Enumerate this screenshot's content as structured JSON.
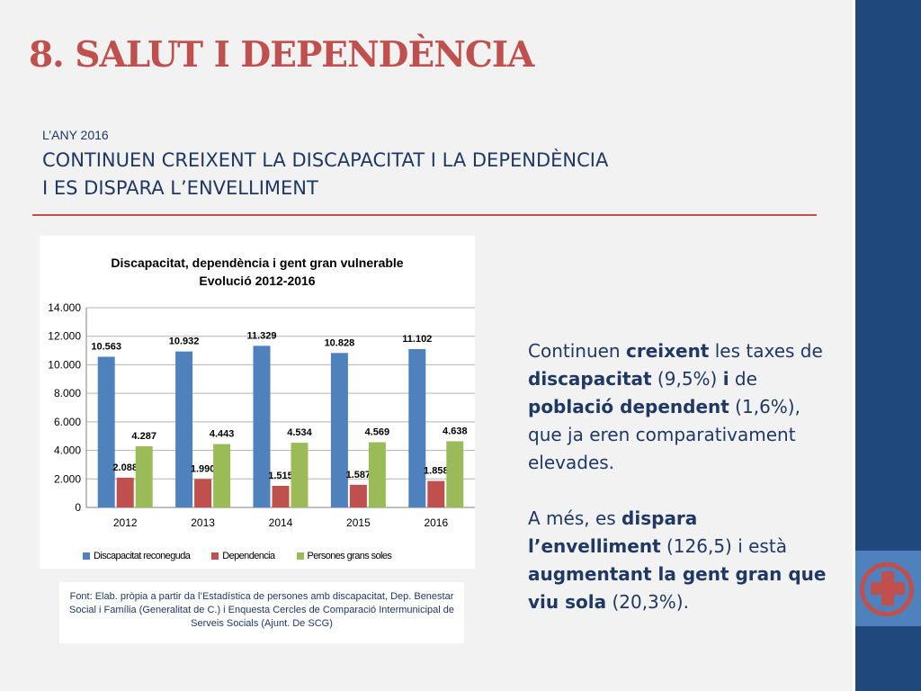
{
  "title": "8. SALUT I DEPENDÈNCIA",
  "kicker": "L’ANY 2016",
  "headline_line1": "CONTINUEN CREIXENT LA DISCAPACITAT I LA DEPENDÈNCIA",
  "headline_line2": "I ES DISPARA L’ENVELLIMENT",
  "chart_title_line1": "Discapacitat, dependència i gent gran vulnerable",
  "chart_title_line2": "Evolució 2012-2016",
  "source": "Font: Elab. pròpia a partir da l’Estadística de persones amb discapacitat, Dep. Benestar Social i Família (Generalitat de C.) i Enquesta Cercles de Comparació Intermunicipal de Serveis Socials (Ajunt. De SCG)",
  "paragraph1": {
    "t1": "Continuen ",
    "b1": "creixent",
    "t2": " les taxes de ",
    "b2": "discapacitat",
    "t3": " (9,5%) ",
    "b3": "i",
    "t4": " de ",
    "b4": "població dependent",
    "t5": " (1,6%), que ja eren comparativament elevades."
  },
  "paragraph2": {
    "t1": "A més, es ",
    "b1": "dispara l’envelliment",
    "t2": " (126,5) i està ",
    "b2": "augmentant la gent gran que viu sola",
    "t3": " (20,3%)."
  },
  "colors": {
    "accent": "#c0504d",
    "text": "#1f3864",
    "sidebar": "#1f497d",
    "sidebar_tab": "#4f81bd"
  },
  "chart_data": {
    "type": "bar",
    "categories": [
      "2012",
      "2013",
      "2014",
      "2015",
      "2016"
    ],
    "series": [
      {
        "name": "Discapacitat reconeguda",
        "color": "#4f81bd",
        "values": [
          10563,
          10932,
          11329,
          10828,
          11102
        ],
        "labels": [
          "10.563",
          "10.932",
          "11.329",
          "10.828",
          "11.102"
        ]
      },
      {
        "name": "Dependencia",
        "color": "#c0504d",
        "values": [
          2088,
          1990,
          1515,
          1587,
          1858
        ],
        "labels": [
          "2.088",
          "1.990",
          "1.515",
          "1.587",
          "1.858"
        ]
      },
      {
        "name": "Persones grans soles",
        "color": "#9bbb59",
        "values": [
          4287,
          4443,
          4534,
          4569,
          4638
        ],
        "labels": [
          "4.287",
          "4.443",
          "4.534",
          "4.569",
          "4.638"
        ]
      }
    ],
    "ylim": [
      0,
      14000
    ],
    "yticks": [
      0,
      2000,
      4000,
      6000,
      8000,
      10000,
      12000,
      14000
    ],
    "ytick_labels": [
      "0",
      "2.000",
      "4.000",
      "6.000",
      "8.000",
      "10.000",
      "12.000",
      "14.000"
    ],
    "grid": true,
    "legend": "bottom"
  }
}
